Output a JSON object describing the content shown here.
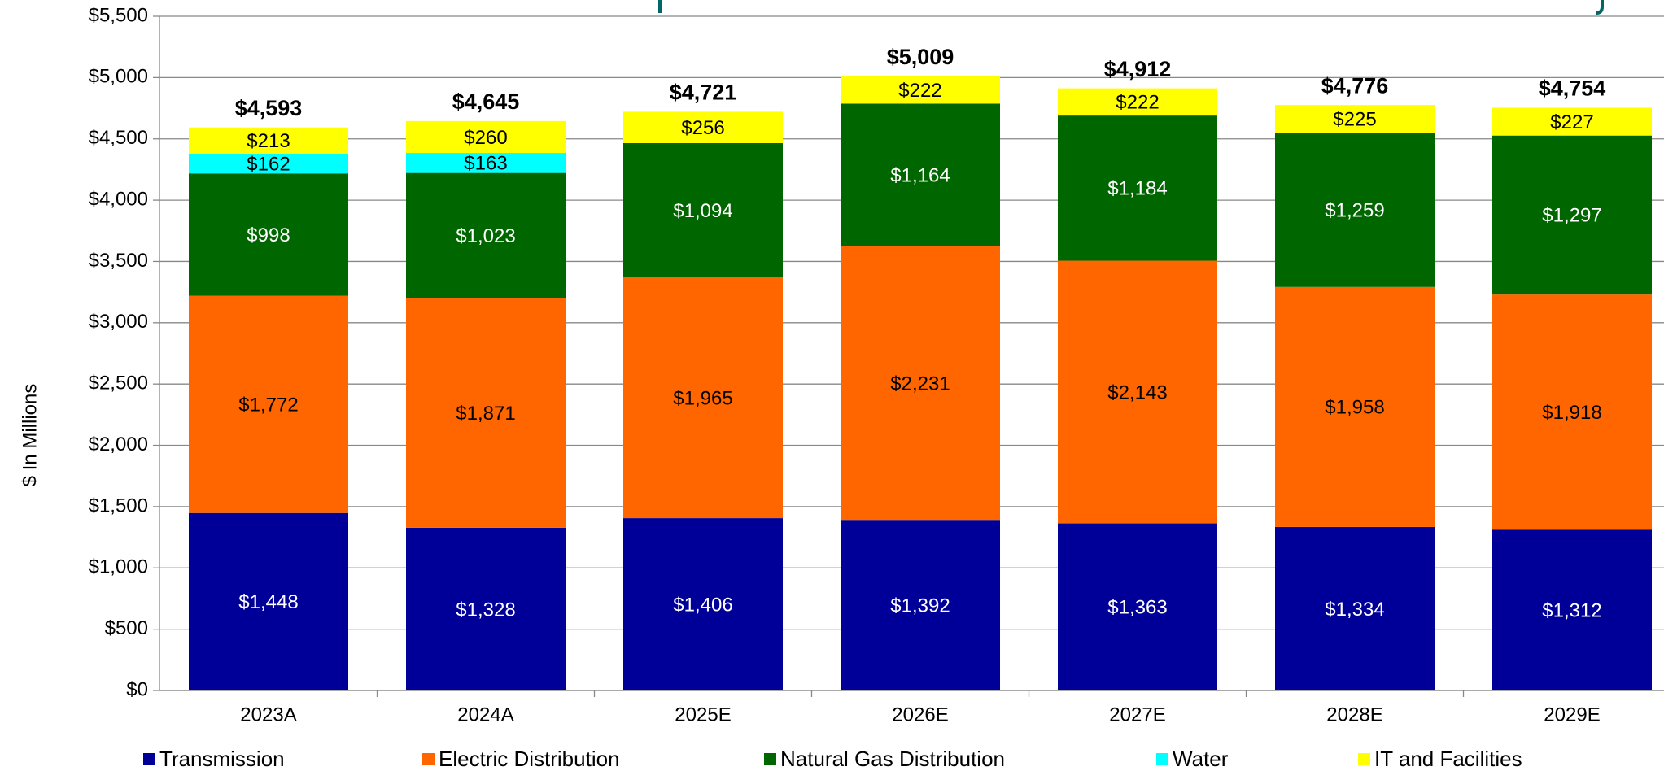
{
  "chart_data": {
    "type": "stacked_bar",
    "y_label": "$ In Millions",
    "categories": [
      "2023A",
      "2024A",
      "2025E",
      "2026E",
      "2027E",
      "2028E",
      "2029E"
    ],
    "series": [
      {
        "name": "Transmission",
        "color": "#000099",
        "values": [
          1448,
          1328,
          1406,
          1392,
          1363,
          1334,
          1312
        ],
        "value_labels": [
          "$1,448",
          "$1,328",
          "$1,406",
          "$1,392",
          "$1,363",
          "$1,334",
          "$1,312"
        ]
      },
      {
        "name": "Electric Distribution",
        "color": "#ff6600",
        "values": [
          1772,
          1871,
          1965,
          2231,
          2143,
          1958,
          1918
        ],
        "value_labels": [
          "$1,772",
          "$1,871",
          "$1,965",
          "$2,231",
          "$2,143",
          "$1,958",
          "$1,918"
        ]
      },
      {
        "name": "Natural Gas Distribution",
        "color": "#006600",
        "values": [
          998,
          1023,
          1094,
          1164,
          1184,
          1259,
          1297
        ],
        "value_labels": [
          "$998",
          "$1,023",
          "$1,094",
          "$1,164",
          "$1,184",
          "$1,259",
          "$1,297"
        ]
      },
      {
        "name": "Water",
        "color": "#00ffff",
        "values": [
          162,
          163,
          null,
          null,
          null,
          null,
          null
        ],
        "value_labels": [
          "$162",
          "$163",
          null,
          null,
          null,
          null,
          null
        ]
      },
      {
        "name": "IT and Facilities",
        "color": "#ffff00",
        "values": [
          213,
          260,
          256,
          222,
          222,
          225,
          227
        ],
        "value_labels": [
          "$213",
          "$260",
          "$256",
          "$222",
          "$222",
          "$225",
          "$227"
        ]
      }
    ],
    "totals": {
      "values": [
        4593,
        4645,
        4721,
        5009,
        4912,
        4776,
        4754
      ],
      "value_labels": [
        "$4,593",
        "$4,645",
        "$4,721",
        "$5,009",
        "$4,912",
        "$4,776",
        "$4,754"
      ]
    },
    "ylim": [
      0,
      5500
    ],
    "yticks": [
      {
        "value": 0,
        "label": "$0"
      },
      {
        "value": 500,
        "label": "$500"
      },
      {
        "value": 1000,
        "label": "$1,000"
      },
      {
        "value": 1500,
        "label": "$1,500"
      },
      {
        "value": 2000,
        "label": "$2,000"
      },
      {
        "value": 2500,
        "label": "$2,500"
      },
      {
        "value": 3000,
        "label": "$3,000"
      },
      {
        "value": 3500,
        "label": "$3,500"
      },
      {
        "value": 4000,
        "label": "$4,000"
      },
      {
        "value": 4500,
        "label": "$4,500"
      },
      {
        "value": 5000,
        "label": "$5,000"
      },
      {
        "value": 5500,
        "label": "$5,500"
      }
    ],
    "grid": true,
    "legend": "bottom"
  }
}
